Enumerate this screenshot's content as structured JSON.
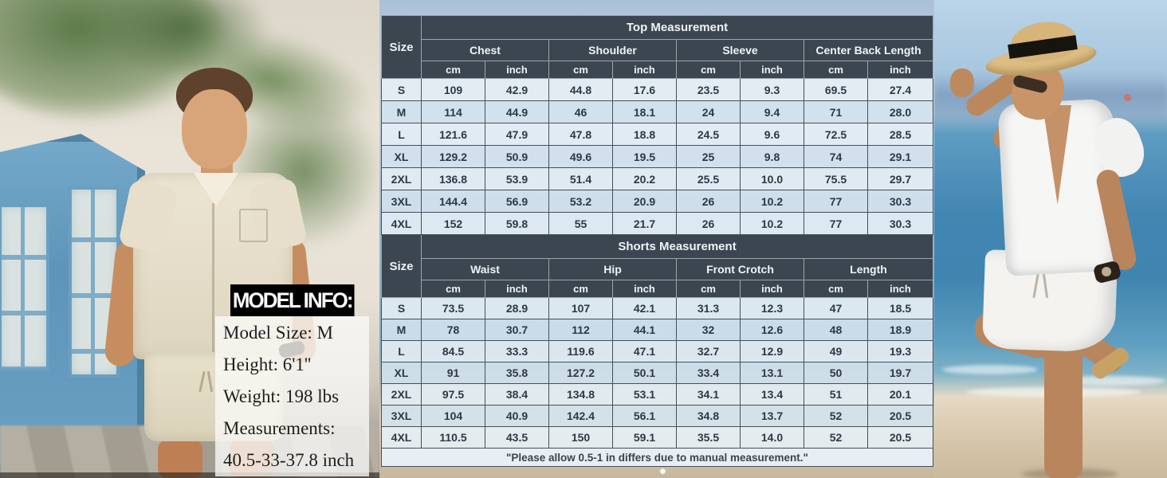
{
  "model_info": {
    "title": "MODEL INFO:",
    "lines": [
      "Model Size: M",
      "Height:  6'1''",
      "Weight: 198 lbs",
      "Measurements:",
      "40.5-33-37.8 inch"
    ]
  },
  "size_chart": {
    "sections": [
      {
        "id": "top",
        "title": "Top Measurement",
        "size_label": "Size",
        "groups": [
          "Chest",
          "Shoulder",
          "Sleeve",
          "Center Back Length"
        ],
        "units": [
          "cm",
          "inch"
        ],
        "rows": [
          {
            "size": "S",
            "values": [
              "109",
              "42.9",
              "44.8",
              "17.6",
              "23.5",
              "9.3",
              "69.5",
              "27.4"
            ]
          },
          {
            "size": "M",
            "values": [
              "114",
              "44.9",
              "46",
              "18.1",
              "24",
              "9.4",
              "71",
              "28.0"
            ]
          },
          {
            "size": "L",
            "values": [
              "121.6",
              "47.9",
              "47.8",
              "18.8",
              "24.5",
              "9.6",
              "72.5",
              "28.5"
            ]
          },
          {
            "size": "XL",
            "values": [
              "129.2",
              "50.9",
              "49.6",
              "19.5",
              "25",
              "9.8",
              "74",
              "29.1"
            ]
          },
          {
            "size": "2XL",
            "values": [
              "136.8",
              "53.9",
              "51.4",
              "20.2",
              "25.5",
              "10.0",
              "75.5",
              "29.7"
            ]
          },
          {
            "size": "3XL",
            "values": [
              "144.4",
              "56.9",
              "53.2",
              "20.9",
              "26",
              "10.2",
              "77",
              "30.3"
            ]
          },
          {
            "size": "4XL",
            "values": [
              "152",
              "59.8",
              "55",
              "21.7",
              "26",
              "10.2",
              "77",
              "30.3"
            ]
          }
        ]
      },
      {
        "id": "shorts",
        "title": "Shorts Measurement",
        "size_label": "Size",
        "groups": [
          "Waist",
          "Hip",
          "Front Crotch",
          "Length"
        ],
        "units": [
          "cm",
          "inch"
        ],
        "rows": [
          {
            "size": "S",
            "values": [
              "73.5",
              "28.9",
              "107",
              "42.1",
              "31.3",
              "12.3",
              "47",
              "18.5"
            ]
          },
          {
            "size": "M",
            "values": [
              "78",
              "30.7",
              "112",
              "44.1",
              "32",
              "12.6",
              "48",
              "18.9"
            ]
          },
          {
            "size": "L",
            "values": [
              "84.5",
              "33.3",
              "119.6",
              "47.1",
              "32.7",
              "12.9",
              "49",
              "19.3"
            ]
          },
          {
            "size": "XL",
            "values": [
              "91",
              "35.8",
              "127.2",
              "50.1",
              "33.4",
              "13.1",
              "50",
              "19.7"
            ]
          },
          {
            "size": "2XL",
            "values": [
              "97.5",
              "38.4",
              "134.8",
              "53.1",
              "34.1",
              "13.4",
              "51",
              "20.1"
            ]
          },
          {
            "size": "3XL",
            "values": [
              "104",
              "40.9",
              "142.4",
              "56.1",
              "34.8",
              "13.7",
              "52",
              "20.5"
            ]
          },
          {
            "size": "4XL",
            "values": [
              "110.5",
              "43.5",
              "150",
              "59.1",
              "35.5",
              "14.0",
              "52",
              "20.5"
            ]
          }
        ]
      }
    ],
    "footer": "\"Please allow 0.5-1 in differs due to manual measurement.\"",
    "colors": {
      "header_bg": "#3b4650",
      "header_text": "#eef3f6",
      "row_bg": "#e7f0f7",
      "row_alt_bg": "#d5e4ef",
      "border": "#43515b"
    }
  }
}
